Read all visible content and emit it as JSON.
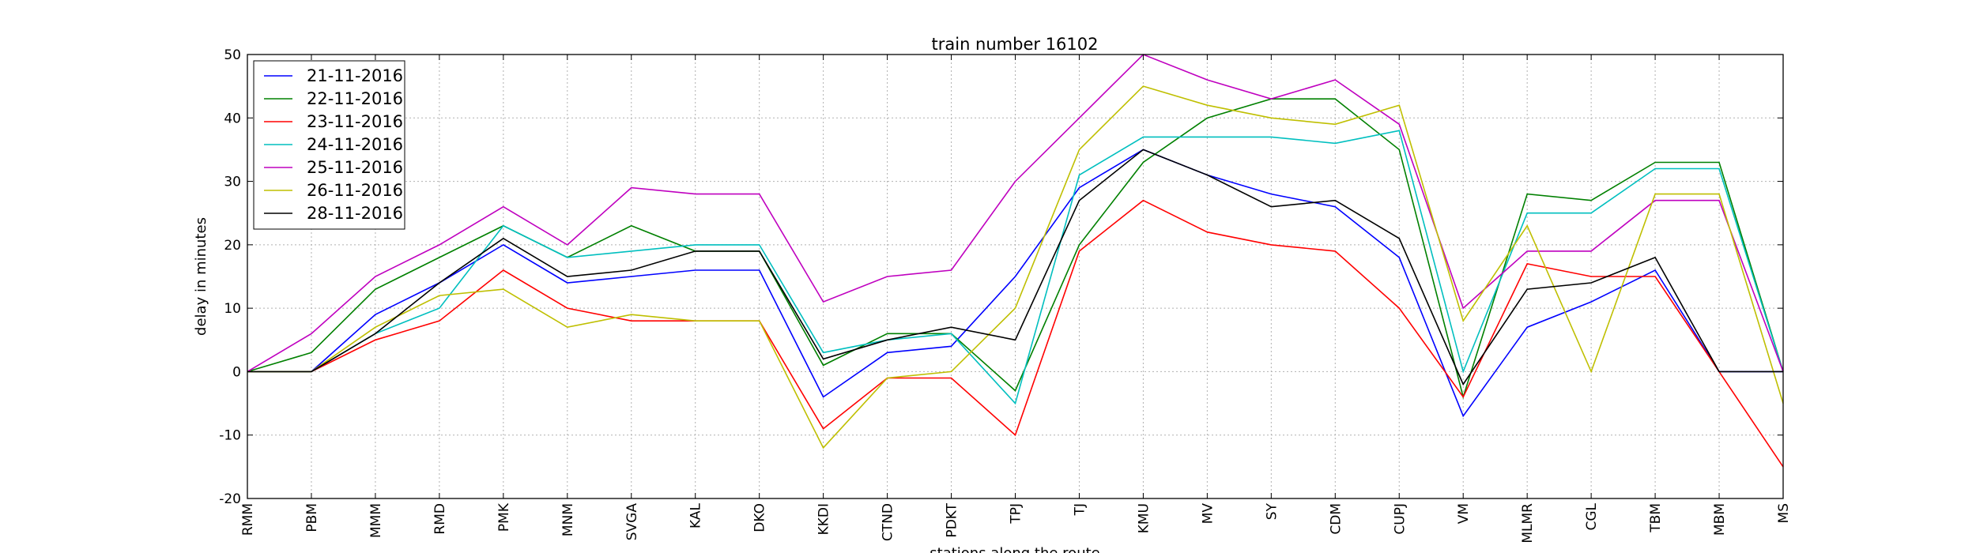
{
  "chart_data": {
    "type": "line",
    "title": "train number 16102",
    "xlabel": "stations along the route",
    "ylabel": "delay in minutes",
    "ylim": [
      -20,
      50
    ],
    "yticks": [
      -20,
      -10,
      0,
      10,
      20,
      30,
      40,
      50
    ],
    "grid": true,
    "legend_position": "top-left",
    "categories": [
      "RMM",
      "PBM",
      "MMM",
      "RMD",
      "PMK",
      "MNM",
      "SVGA",
      "KAL",
      "DKO",
      "KKDI",
      "CTND",
      "PDKT",
      "TPJ",
      "TJ",
      "KMU",
      "MV",
      "SY",
      "CDM",
      "CUPJ",
      "VM",
      "MLMR",
      "CGL",
      "TBM",
      "MBM",
      "MS"
    ],
    "series": [
      {
        "name": "21-11-2016",
        "color": "#0000ff",
        "values": [
          0,
          0,
          9,
          14,
          20,
          14,
          15,
          16,
          16,
          -4,
          3,
          4,
          15,
          29,
          35,
          31,
          28,
          26,
          18,
          -7,
          7,
          11,
          16,
          0,
          0
        ]
      },
      {
        "name": "22-11-2016",
        "color": "#008000",
        "values": [
          0,
          3,
          13,
          18,
          23,
          18,
          23,
          19,
          19,
          1,
          6,
          6,
          -3,
          20,
          33,
          40,
          43,
          43,
          35,
          -4,
          28,
          27,
          33,
          33,
          0
        ]
      },
      {
        "name": "23-11-2016",
        "color": "#ff0000",
        "values": [
          0,
          0,
          5,
          8,
          16,
          10,
          8,
          8,
          8,
          -9,
          -1,
          -1,
          -10,
          19,
          27,
          22,
          20,
          19,
          10,
          -4,
          17,
          15,
          15,
          0,
          -15
        ]
      },
      {
        "name": "24-11-2016",
        "color": "#00bfbf",
        "values": [
          0,
          0,
          6,
          10,
          23,
          18,
          19,
          20,
          20,
          3,
          5,
          6,
          -5,
          31,
          37,
          37,
          37,
          36,
          38,
          0,
          25,
          25,
          32,
          32,
          0
        ]
      },
      {
        "name": "25-11-2016",
        "color": "#bf00bf",
        "values": [
          0,
          6,
          15,
          20,
          26,
          20,
          29,
          28,
          28,
          11,
          15,
          16,
          30,
          40,
          50,
          46,
          43,
          46,
          39,
          10,
          19,
          19,
          27,
          27,
          0
        ]
      },
      {
        "name": "26-11-2016",
        "color": "#bfbf00",
        "values": [
          0,
          0,
          7,
          12,
          13,
          7,
          9,
          8,
          8,
          -12,
          -1,
          0,
          10,
          35,
          45,
          42,
          40,
          39,
          42,
          8,
          23,
          0,
          28,
          28,
          -5
        ]
      },
      {
        "name": "28-11-2016",
        "color": "#000000",
        "values": [
          0,
          0,
          6,
          14,
          21,
          15,
          16,
          19,
          19,
          2,
          5,
          7,
          5,
          27,
          35,
          31,
          26,
          27,
          21,
          -2,
          13,
          14,
          18,
          0,
          0
        ]
      }
    ]
  }
}
